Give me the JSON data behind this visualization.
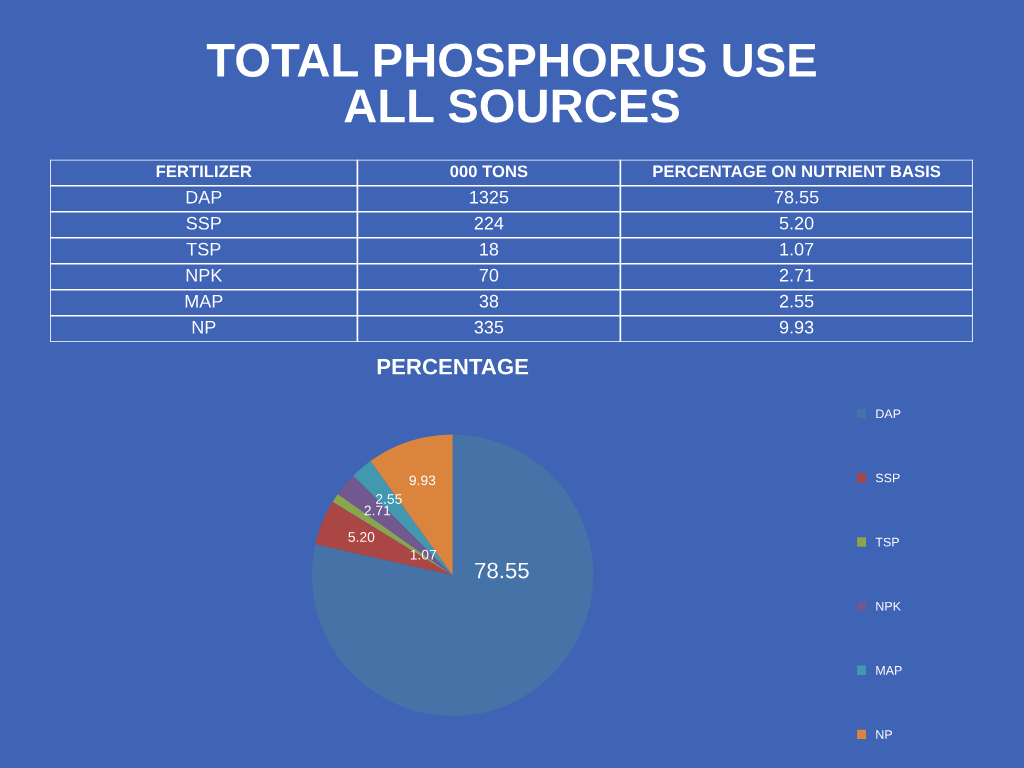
{
  "chart_data": [
    {
      "type": "other",
      "title": "TOTAL PHOSPHORUS USE\nALL SOURCES",
      "xlabel": "FERTILIZER",
      "categories": [
        "DAP",
        "SSP",
        "TSP",
        "NPK",
        "MAP",
        "NP"
      ],
      "series": [
        {
          "name": "000 TONS",
          "values": [
            1325,
            224,
            18,
            70,
            38,
            335
          ],
          "value_labels": [
            "1325",
            "224",
            "18",
            "70",
            "38",
            "335"
          ]
        },
        {
          "name": "PERCENTAGE ON NUTRIENT BASIS",
          "values": [
            78.55,
            5.2,
            1.07,
            2.71,
            2.55,
            9.93
          ],
          "value_labels": [
            "78.55",
            "5.20",
            "1.07",
            "2.71",
            "2.55",
            "9.93"
          ]
        }
      ],
      "data_labels": true
    },
    {
      "type": "pie",
      "title": "PERCENTAGE",
      "categories": [
        "DAP",
        "SSP",
        "TSP",
        "NPK",
        "MAP",
        "NP"
      ],
      "values": [
        78.55,
        5.2,
        1.07,
        2.71,
        2.55,
        9.93
      ],
      "value_labels": [
        "78.55",
        "5.20",
        "1.07",
        "2.71",
        "2.55",
        "9.93"
      ],
      "colors": [
        "#4572a7",
        "#aa4643",
        "#89a54e",
        "#71588f",
        "#4198af",
        "#db843d"
      ],
      "data_labels": true,
      "legend": "right"
    }
  ]
}
